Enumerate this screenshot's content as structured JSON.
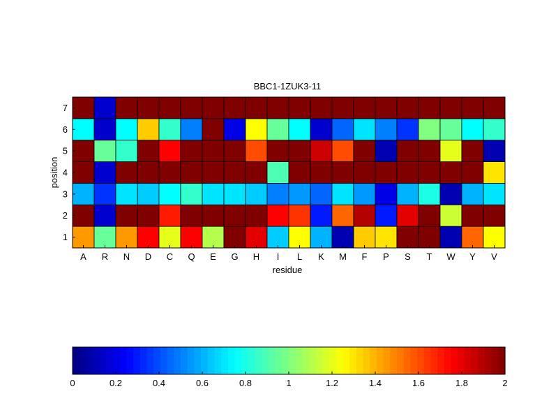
{
  "chart_data": {
    "type": "heatmap",
    "title": "BBC1-1ZUK3-11",
    "xlabel": "residue",
    "ylabel": "position",
    "x_categories": [
      "A",
      "R",
      "N",
      "D",
      "C",
      "Q",
      "E",
      "G",
      "H",
      "I",
      "L",
      "K",
      "M",
      "F",
      "P",
      "S",
      "T",
      "W",
      "Y",
      "V"
    ],
    "y_categories": [
      "1",
      "2",
      "3",
      "4",
      "5",
      "6",
      "7"
    ],
    "values": [
      [
        1.45,
        0.95,
        1.45,
        1.75,
        1.2,
        1.75,
        1.1,
        2.0,
        1.8,
        0.65,
        1.25,
        0.6,
        0.1,
        1.35,
        1.3,
        2.0,
        2.0,
        0.1,
        1.55,
        1.25
      ],
      [
        2.0,
        0.15,
        2.0,
        2.0,
        1.7,
        2.0,
        2.0,
        2.0,
        2.0,
        1.75,
        1.65,
        0.3,
        1.55,
        1.9,
        0.3,
        1.8,
        2.0,
        1.15,
        2.0,
        2.0
      ],
      [
        0.6,
        0.35,
        0.7,
        0.65,
        0.75,
        0.85,
        0.7,
        0.7,
        0.65,
        0.5,
        0.55,
        0.45,
        0.7,
        0.55,
        0.2,
        0.6,
        0.8,
        0.1,
        0.6,
        0.7
      ],
      [
        2.0,
        0.15,
        2.0,
        2.0,
        2.0,
        2.0,
        2.0,
        2.0,
        2.0,
        0.9,
        2.0,
        2.0,
        2.0,
        2.0,
        2.0,
        2.0,
        2.0,
        2.0,
        2.0,
        1.3
      ],
      [
        2.0,
        0.95,
        0.85,
        2.0,
        1.75,
        2.0,
        2.0,
        2.0,
        1.6,
        2.0,
        2.0,
        1.85,
        1.6,
        2.0,
        0.1,
        2.0,
        2.0,
        1.2,
        2.0,
        0.1
      ],
      [
        0.75,
        0.15,
        0.75,
        1.35,
        0.85,
        0.5,
        2.0,
        0.2,
        1.25,
        0.95,
        0.75,
        0.15,
        0.45,
        0.7,
        0.5,
        0.35,
        1.0,
        0.95,
        0.75,
        0.85
      ],
      [
        2.0,
        0.15,
        2.0,
        2.0,
        2.0,
        2.0,
        2.0,
        2.0,
        2.0,
        2.0,
        2.0,
        2.0,
        2.0,
        2.0,
        2.0,
        2.0,
        2.0,
        2.0,
        2.0,
        2.0
      ]
    ],
    "colormap": "jet",
    "clim": [
      0,
      2
    ],
    "colorbar": {
      "orientation": "horizontal",
      "placement": "bottom",
      "ticks": [
        "0",
        "0.2",
        "0.4",
        "0.6",
        "0.8",
        "1",
        "1.2",
        "1.4",
        "1.6",
        "1.8",
        "2"
      ]
    },
    "grid": false
  }
}
